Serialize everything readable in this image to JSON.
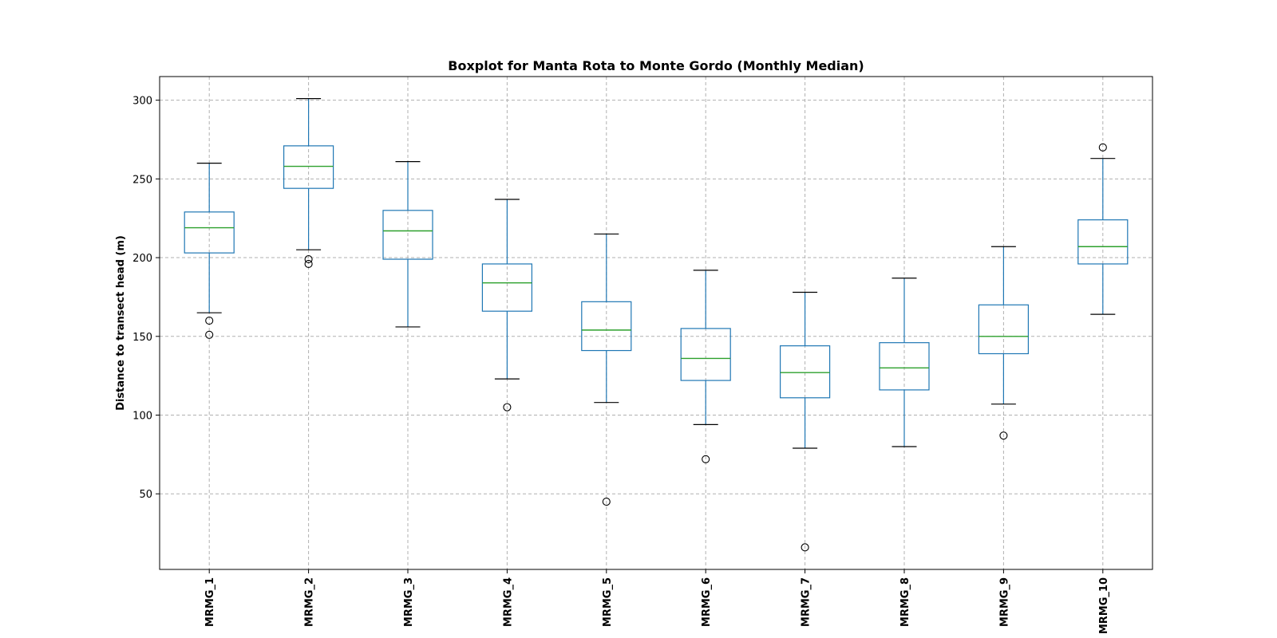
{
  "chart_data": {
    "type": "boxplot",
    "title": "Boxplot for Manta Rota to Monte Gordo (Monthly Median)",
    "xlabel": "",
    "ylabel": "Distance to transect head (m)",
    "ylim": [
      2,
      315
    ],
    "yticks": [
      50,
      100,
      150,
      200,
      250,
      300
    ],
    "grid": true,
    "categories": [
      "MRMG_1",
      "MRMG_2",
      "MRMG_3",
      "MRMG_4",
      "MRMG_5",
      "MRMG_6",
      "MRMG_7",
      "MRMG_8",
      "MRMG_9",
      "MRMG_10"
    ],
    "boxes": [
      {
        "whisker_low": 165,
        "q1": 203,
        "median": 219,
        "q3": 229,
        "whisker_high": 260,
        "fliers": [
          160,
          151
        ]
      },
      {
        "whisker_low": 205,
        "q1": 244,
        "median": 258,
        "q3": 271,
        "whisker_high": 301,
        "fliers": [
          199,
          196
        ]
      },
      {
        "whisker_low": 156,
        "q1": 199,
        "median": 217,
        "q3": 230,
        "whisker_high": 261,
        "fliers": []
      },
      {
        "whisker_low": 123,
        "q1": 166,
        "median": 184,
        "q3": 196,
        "whisker_high": 237,
        "fliers": [
          105
        ]
      },
      {
        "whisker_low": 108,
        "q1": 141,
        "median": 154,
        "q3": 172,
        "whisker_high": 215,
        "fliers": [
          45
        ]
      },
      {
        "whisker_low": 94,
        "q1": 122,
        "median": 136,
        "q3": 155,
        "whisker_high": 192,
        "fliers": [
          72
        ]
      },
      {
        "whisker_low": 79,
        "q1": 111,
        "median": 127,
        "q3": 144,
        "whisker_high": 178,
        "fliers": [
          16
        ]
      },
      {
        "whisker_low": 80,
        "q1": 116,
        "median": 130,
        "q3": 146,
        "whisker_high": 187,
        "fliers": []
      },
      {
        "whisker_low": 107,
        "q1": 139,
        "median": 150,
        "q3": 170,
        "whisker_high": 207,
        "fliers": [
          87
        ]
      },
      {
        "whisker_low": 164,
        "q1": 196,
        "median": 207,
        "q3": 224,
        "whisker_high": 263,
        "fliers": [
          270
        ]
      }
    ],
    "colors": {
      "box": "#1f77b4",
      "median": "#2ca02c",
      "cap": "#000000",
      "flier": "#000000",
      "grid": "#b0b0b0"
    }
  }
}
